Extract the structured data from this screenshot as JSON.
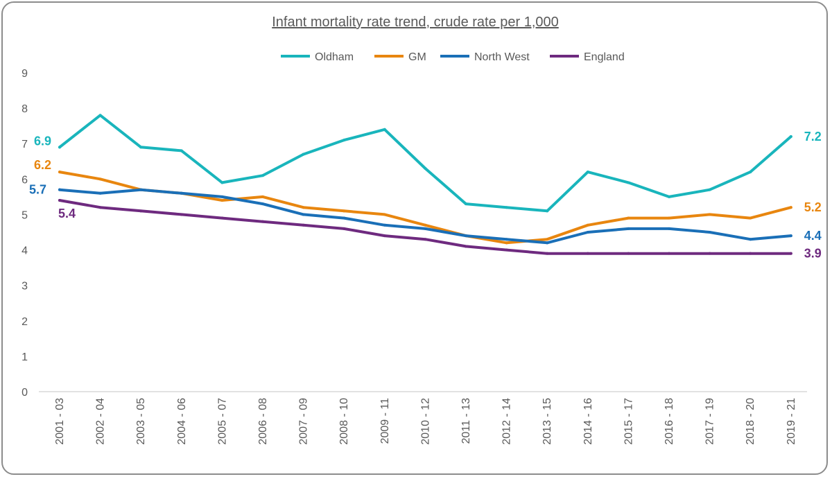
{
  "chart_data": {
    "type": "line",
    "title": "Infant mortality rate trend, crude rate per 1,000",
    "xlabel": "",
    "ylabel": "",
    "ylim": [
      0,
      9
    ],
    "y_ticks": [
      "0",
      "1",
      "2",
      "3",
      "4",
      "5",
      "6",
      "7",
      "8",
      "9"
    ],
    "grid": false,
    "legend_position": "top",
    "categories": [
      "2001 - 03",
      "2002 - 04",
      "2003 - 05",
      "2004 - 06",
      "2005 - 07",
      "2006 - 08",
      "2007 - 09",
      "2008 - 10",
      "2009 - 11",
      "2010 - 12",
      "2011 - 13",
      "2012 - 14",
      "2013 - 15",
      "2014 - 16",
      "2015 - 17",
      "2016 - 18",
      "2017 - 19",
      "2018 - 20",
      "2019 - 21"
    ],
    "series": [
      {
        "name": "Oldham",
        "color": "#19b5bc",
        "values": [
          6.9,
          7.8,
          6.9,
          6.8,
          5.9,
          6.1,
          6.7,
          7.1,
          7.4,
          6.3,
          5.3,
          5.2,
          5.1,
          6.2,
          5.9,
          5.5,
          5.7,
          6.2,
          7.2
        ],
        "start_label": "6.9",
        "end_label": "7.2"
      },
      {
        "name": "GM",
        "color": "#e8860f",
        "values": [
          6.2,
          6.0,
          5.7,
          5.6,
          5.4,
          5.5,
          5.2,
          5.1,
          5.0,
          4.7,
          4.4,
          4.2,
          4.3,
          4.7,
          4.9,
          4.9,
          5.0,
          4.9,
          5.2
        ],
        "start_label": "6.2",
        "end_label": "5.2"
      },
      {
        "name": "North West",
        "color": "#1a6fb7",
        "values": [
          5.7,
          5.6,
          5.7,
          5.6,
          5.5,
          5.3,
          5.0,
          4.9,
          4.7,
          4.6,
          4.4,
          4.3,
          4.2,
          4.5,
          4.6,
          4.6,
          4.5,
          4.3,
          4.4
        ],
        "start_label": "5.7",
        "end_label": "4.4"
      },
      {
        "name": "England",
        "color": "#6e2a7f",
        "values": [
          5.4,
          5.2,
          5.1,
          5.0,
          4.9,
          4.8,
          4.7,
          4.6,
          4.4,
          4.3,
          4.1,
          4.0,
          3.9,
          3.9,
          3.9,
          3.9,
          3.9,
          3.9,
          3.9
        ],
        "start_label": "5.4",
        "end_label": "3.9"
      }
    ]
  }
}
